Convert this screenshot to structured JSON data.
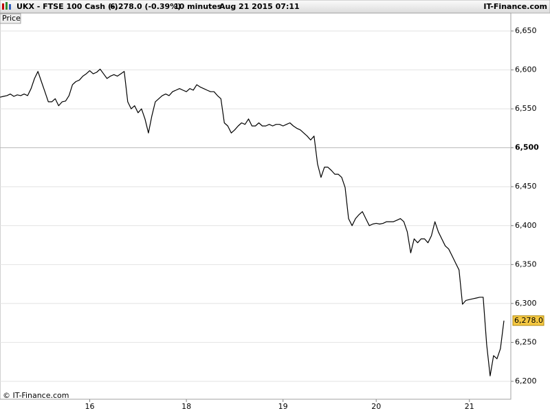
{
  "header": {
    "instrument": "UKX - FTSE 100 Cash (-)",
    "quote": "6,278.0 (-0.39%)",
    "interval": "10 minutes",
    "timestamp": "Aug 21 2015 07:11",
    "brand": "IT-Finance.com"
  },
  "chart_data": {
    "type": "line",
    "panel_label": "Price",
    "copyright": "© IT-Finance.com",
    "series": [
      {
        "name": "Price",
        "color": "#000000",
        "values": [
          6565,
          6566,
          6567,
          6569,
          6566,
          6568,
          6567,
          6569,
          6567,
          6576,
          6589,
          6598,
          6585,
          6572,
          6559,
          6559,
          6563,
          6554,
          6559,
          6560,
          6567,
          6581,
          6585,
          6587,
          6592,
          6595,
          6599,
          6595,
          6597,
          6601,
          6595,
          6589,
          6592,
          6594,
          6592,
          6595,
          6598,
          6559,
          6550,
          6554,
          6545,
          6550,
          6537,
          6519,
          6541,
          6559,
          6563,
          6567,
          6569,
          6567,
          6572,
          6574,
          6576,
          6574,
          6572,
          6576,
          6574,
          6581,
          6578,
          6576,
          6574,
          6572,
          6572,
          6567,
          6563,
          6532,
          6528,
          6519,
          6523,
          6528,
          6532,
          6530,
          6537,
          6528,
          6528,
          6532,
          6528,
          6528,
          6530,
          6528,
          6530,
          6530,
          6528,
          6530,
          6532,
          6528,
          6525,
          6523,
          6519,
          6515,
          6510,
          6515,
          6479,
          6462,
          6475,
          6475,
          6471,
          6466,
          6466,
          6462,
          6449,
          6409,
          6400,
          6409,
          6414,
          6418,
          6409,
          6400,
          6402,
          6403,
          6402,
          6403,
          6405,
          6405,
          6405,
          6407,
          6409,
          6405,
          6392,
          6365,
          6383,
          6378,
          6383,
          6383,
          6378,
          6387,
          6405,
          6392,
          6383,
          6374,
          6370,
          6361,
          6352,
          6343,
          6299,
          6304,
          6305,
          6306,
          6307,
          6308,
          6308,
          6247,
          6207,
          6233,
          6229,
          6242,
          6278
        ]
      }
    ],
    "last_price": {
      "value": 6278,
      "label": "6,278.0"
    },
    "xlim": [
      0,
      148
    ],
    "xticks": [
      {
        "value": 26,
        "label": "16"
      },
      {
        "value": 54,
        "label": "18"
      },
      {
        "value": 82,
        "label": "19"
      },
      {
        "value": 109,
        "label": "20"
      },
      {
        "value": 136,
        "label": "21"
      }
    ],
    "ylim": [
      6177,
      6673
    ],
    "yticks": [
      {
        "value": 6200,
        "label": "6,200"
      },
      {
        "value": 6250,
        "label": "6,250"
      },
      {
        "value": 6300,
        "label": "6,300"
      },
      {
        "value": 6350,
        "label": "6,350"
      },
      {
        "value": 6400,
        "label": "6,400"
      },
      {
        "value": 6450,
        "label": "6,450"
      },
      {
        "value": 6500,
        "label": "6,500"
      },
      {
        "value": 6550,
        "label": "6,550"
      },
      {
        "value": 6600,
        "label": "6,600"
      },
      {
        "value": 6650,
        "label": "6,650"
      }
    ],
    "emphasized_ytick": 6500,
    "grid": true
  }
}
